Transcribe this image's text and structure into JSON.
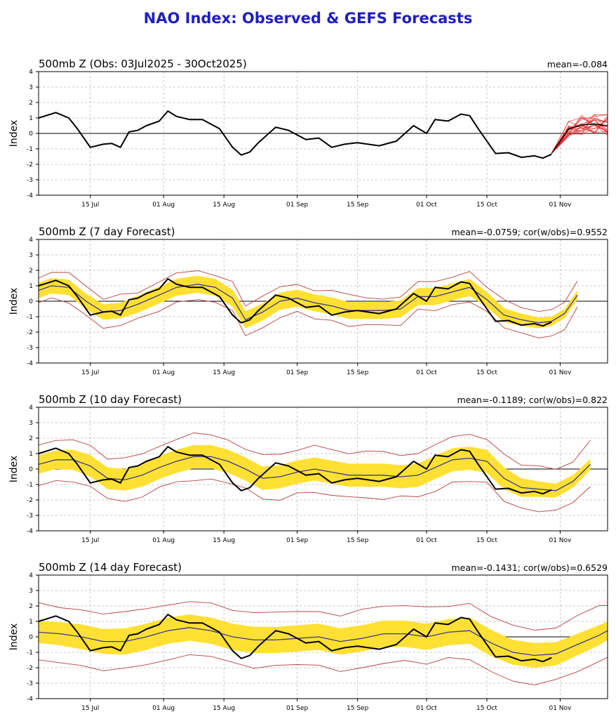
{
  "page": {
    "title": "NAO Index: Observed & GEFS Forecasts"
  },
  "colors": {
    "title": "#1f1fbf",
    "observed": "#000000",
    "ensemble": "#e21f1f",
    "spread": "#ffe033",
    "mean": "#3a3a8c",
    "bounds": "#b84040",
    "grid": "#b8b8b8"
  },
  "chart_data": [
    {
      "type": "line",
      "title": "500mb Z (Obs: 03Jul2025 - 30Oct2025)",
      "stat": "mean=-0.084",
      "ylabel": "Index",
      "ylim": [
        -4,
        4
      ],
      "yticks": [
        -4,
        -3,
        -2,
        -1,
        0,
        1,
        2,
        3,
        4
      ],
      "xlim": [
        "2025-07-03",
        "2025-11-12"
      ],
      "xticks": [
        {
          "date": "2025-07-15",
          "label": "15 Jul"
        },
        {
          "date": "2025-08-01",
          "label": "01 Aug"
        },
        {
          "date": "2025-08-15",
          "label": "15 Aug"
        },
        {
          "date": "2025-09-01",
          "label": "01 Sep"
        },
        {
          "date": "2025-09-15",
          "label": "15 Sep"
        },
        {
          "date": "2025-10-01",
          "label": "01 Oct"
        },
        {
          "date": "2025-10-15",
          "label": "15 Oct"
        },
        {
          "date": "2025-11-01",
          "label": "01 Nov"
        }
      ],
      "grid": true,
      "series": [
        {
          "role": "observed",
          "x": [
            "2025-07-03",
            "2025-07-07",
            "2025-07-10",
            "2025-07-12",
            "2025-07-15",
            "2025-07-18",
            "2025-07-20",
            "2025-07-22",
            "2025-07-24",
            "2025-07-26",
            "2025-07-28",
            "2025-07-31",
            "2025-08-02",
            "2025-08-04",
            "2025-08-07",
            "2025-08-10",
            "2025-08-14",
            "2025-08-17",
            "2025-08-19",
            "2025-08-21",
            "2025-08-23",
            "2025-08-27",
            "2025-08-30",
            "2025-09-03",
            "2025-09-06",
            "2025-09-09",
            "2025-09-12",
            "2025-09-15",
            "2025-09-20",
            "2025-09-24",
            "2025-09-28",
            "2025-10-01",
            "2025-10-03",
            "2025-10-06",
            "2025-10-09",
            "2025-10-11",
            "2025-10-13",
            "2025-10-17",
            "2025-10-20",
            "2025-10-23",
            "2025-10-26",
            "2025-10-28",
            "2025-10-30"
          ],
          "values": [
            1.0,
            1.35,
            1.0,
            0.3,
            -0.9,
            -0.7,
            -0.65,
            -0.9,
            0.1,
            0.2,
            0.5,
            0.8,
            1.45,
            1.1,
            0.9,
            0.9,
            0.3,
            -0.9,
            -1.4,
            -1.2,
            -0.6,
            0.4,
            0.2,
            -0.4,
            -0.3,
            -0.9,
            -0.7,
            -0.6,
            -0.8,
            -0.5,
            0.5,
            0.0,
            0.9,
            0.8,
            1.25,
            1.15,
            0.3,
            -1.3,
            -1.25,
            -1.55,
            -1.45,
            -1.6,
            -1.35
          ]
        },
        {
          "role": "ensemble",
          "members": 21,
          "x": [
            "2025-10-30",
            "2025-11-03",
            "2025-11-06",
            "2025-11-09",
            "2025-11-12"
          ],
          "values": [
            -1.3,
            0.3,
            0.55,
            0.6,
            0.5
          ],
          "spread": [
            0.1,
            0.55,
            0.65,
            0.7,
            0.75
          ]
        }
      ]
    },
    {
      "type": "line",
      "title": "500mb Z (7 day Forecast)",
      "stat": "mean=-0.0759; cor(w/obs)=0.9552",
      "ylabel": "Index",
      "ylim": [
        -4,
        4
      ],
      "yticks": [
        -4,
        -3,
        -2,
        -1,
        0,
        1,
        2,
        3,
        4
      ],
      "xlim": [
        "2025-07-03",
        "2025-11-12"
      ],
      "xticks": [
        {
          "date": "2025-07-15",
          "label": "15 Jul"
        },
        {
          "date": "2025-08-01",
          "label": "01 Aug"
        },
        {
          "date": "2025-08-15",
          "label": "15 Aug"
        },
        {
          "date": "2025-09-01",
          "label": "01 Sep"
        },
        {
          "date": "2025-09-15",
          "label": "15 Sep"
        },
        {
          "date": "2025-10-01",
          "label": "01 Oct"
        },
        {
          "date": "2025-10-15",
          "label": "15 Oct"
        },
        {
          "date": "2025-11-01",
          "label": "01 Nov"
        }
      ],
      "grid": true,
      "series": [
        {
          "role": "forecast",
          "x": [
            "2025-07-03",
            "2025-07-06",
            "2025-07-10",
            "2025-07-14",
            "2025-07-18",
            "2025-07-22",
            "2025-07-26",
            "2025-07-31",
            "2025-08-04",
            "2025-08-09",
            "2025-08-13",
            "2025-08-17",
            "2025-08-20",
            "2025-08-24",
            "2025-08-28",
            "2025-09-01",
            "2025-09-05",
            "2025-09-09",
            "2025-09-13",
            "2025-09-17",
            "2025-09-21",
            "2025-09-25",
            "2025-09-29",
            "2025-10-03",
            "2025-10-07",
            "2025-10-11",
            "2025-10-15",
            "2025-10-19",
            "2025-10-23",
            "2025-10-27",
            "2025-10-30",
            "2025-11-02",
            "2025-11-05"
          ],
          "mean": [
            0.7,
            1.0,
            0.9,
            0.0,
            -0.7,
            -0.6,
            -0.2,
            0.4,
            0.9,
            1.1,
            0.9,
            0.2,
            -1.2,
            -0.7,
            0.0,
            0.2,
            -0.1,
            -0.3,
            -0.6,
            -0.6,
            -0.6,
            -0.5,
            0.3,
            0.3,
            0.6,
            0.9,
            0.1,
            -0.9,
            -1.2,
            -1.4,
            -1.3,
            -0.8,
            0.4
          ],
          "spread": [
            0.5,
            0.5,
            0.5,
            0.5,
            0.5,
            0.5,
            0.55,
            0.55,
            0.55,
            0.55,
            0.55,
            0.55,
            0.55,
            0.55,
            0.55,
            0.55,
            0.55,
            0.55,
            0.55,
            0.55,
            0.55,
            0.55,
            0.55,
            0.55,
            0.55,
            0.55,
            0.5,
            0.45,
            0.4,
            0.35,
            0.3,
            0.3,
            0.3
          ],
          "range": 0.9
        },
        {
          "role": "observed",
          "x": [
            "2025-07-03",
            "2025-07-07",
            "2025-07-10",
            "2025-07-12",
            "2025-07-15",
            "2025-07-18",
            "2025-07-20",
            "2025-07-22",
            "2025-07-24",
            "2025-07-26",
            "2025-07-28",
            "2025-07-31",
            "2025-08-02",
            "2025-08-04",
            "2025-08-07",
            "2025-08-10",
            "2025-08-14",
            "2025-08-17",
            "2025-08-19",
            "2025-08-21",
            "2025-08-23",
            "2025-08-27",
            "2025-08-30",
            "2025-09-03",
            "2025-09-06",
            "2025-09-09",
            "2025-09-12",
            "2025-09-15",
            "2025-09-20",
            "2025-09-24",
            "2025-09-28",
            "2025-10-01",
            "2025-10-03",
            "2025-10-06",
            "2025-10-09",
            "2025-10-11",
            "2025-10-13",
            "2025-10-17",
            "2025-10-20",
            "2025-10-23",
            "2025-10-26",
            "2025-10-28",
            "2025-10-30"
          ],
          "values": [
            1.0,
            1.35,
            1.0,
            0.3,
            -0.9,
            -0.7,
            -0.65,
            -0.9,
            0.1,
            0.2,
            0.5,
            0.8,
            1.45,
            1.1,
            0.9,
            0.9,
            0.3,
            -0.9,
            -1.4,
            -1.2,
            -0.6,
            0.4,
            0.2,
            -0.4,
            -0.3,
            -0.9,
            -0.7,
            -0.6,
            -0.8,
            -0.5,
            0.5,
            0.0,
            0.9,
            0.8,
            1.25,
            1.15,
            0.3,
            -1.3,
            -1.25,
            -1.55,
            -1.45,
            -1.6,
            -1.35
          ]
        }
      ]
    },
    {
      "type": "line",
      "title": "500mb Z (10 day Forecast)",
      "stat": "mean=-0.1189; cor(w/obs)=0.822",
      "ylabel": "Index",
      "ylim": [
        -4,
        4
      ],
      "yticks": [
        -4,
        -3,
        -2,
        -1,
        0,
        1,
        2,
        3,
        4
      ],
      "xlim": [
        "2025-07-03",
        "2025-11-12"
      ],
      "xticks": [
        {
          "date": "2025-07-15",
          "label": "15 Jul"
        },
        {
          "date": "2025-08-01",
          "label": "01 Aug"
        },
        {
          "date": "2025-08-15",
          "label": "15 Aug"
        },
        {
          "date": "2025-09-01",
          "label": "01 Sep"
        },
        {
          "date": "2025-09-15",
          "label": "15 Sep"
        },
        {
          "date": "2025-10-01",
          "label": "01 Oct"
        },
        {
          "date": "2025-10-15",
          "label": "15 Oct"
        },
        {
          "date": "2025-11-01",
          "label": "01 Nov"
        }
      ],
      "grid": true,
      "series": [
        {
          "role": "forecast",
          "x": [
            "2025-07-03",
            "2025-07-07",
            "2025-07-11",
            "2025-07-15",
            "2025-07-19",
            "2025-07-23",
            "2025-07-27",
            "2025-07-31",
            "2025-08-04",
            "2025-08-08",
            "2025-08-12",
            "2025-08-16",
            "2025-08-20",
            "2025-08-24",
            "2025-08-28",
            "2025-09-01",
            "2025-09-05",
            "2025-09-09",
            "2025-09-13",
            "2025-09-17",
            "2025-09-21",
            "2025-09-25",
            "2025-09-29",
            "2025-10-03",
            "2025-10-07",
            "2025-10-11",
            "2025-10-15",
            "2025-10-19",
            "2025-10-23",
            "2025-10-27",
            "2025-10-31",
            "2025-11-04",
            "2025-11-08"
          ],
          "mean": [
            0.3,
            0.6,
            0.6,
            0.2,
            -0.6,
            -0.7,
            -0.4,
            0.1,
            0.5,
            0.8,
            0.8,
            0.5,
            0.0,
            -0.6,
            -0.5,
            -0.2,
            0.0,
            -0.2,
            -0.4,
            -0.4,
            -0.4,
            -0.5,
            -0.4,
            0.1,
            0.6,
            0.7,
            0.5,
            -0.6,
            -1.2,
            -1.3,
            -1.4,
            -0.8,
            0.3
          ],
          "spread": [
            0.6,
            0.6,
            0.65,
            0.7,
            0.7,
            0.7,
            0.75,
            0.75,
            0.75,
            0.75,
            0.75,
            0.75,
            0.75,
            0.75,
            0.75,
            0.75,
            0.75,
            0.75,
            0.75,
            0.75,
            0.75,
            0.75,
            0.75,
            0.75,
            0.75,
            0.75,
            0.75,
            0.7,
            0.6,
            0.5,
            0.45,
            0.4,
            0.35
          ],
          "range": 1.4
        },
        {
          "role": "observed",
          "x": [
            "2025-07-03",
            "2025-07-07",
            "2025-07-10",
            "2025-07-12",
            "2025-07-15",
            "2025-07-18",
            "2025-07-20",
            "2025-07-22",
            "2025-07-24",
            "2025-07-26",
            "2025-07-28",
            "2025-07-31",
            "2025-08-02",
            "2025-08-04",
            "2025-08-07",
            "2025-08-10",
            "2025-08-14",
            "2025-08-17",
            "2025-08-19",
            "2025-08-21",
            "2025-08-23",
            "2025-08-27",
            "2025-08-30",
            "2025-09-03",
            "2025-09-06",
            "2025-09-09",
            "2025-09-12",
            "2025-09-15",
            "2025-09-20",
            "2025-09-24",
            "2025-09-28",
            "2025-10-01",
            "2025-10-03",
            "2025-10-06",
            "2025-10-09",
            "2025-10-11",
            "2025-10-13",
            "2025-10-17",
            "2025-10-20",
            "2025-10-23",
            "2025-10-26",
            "2025-10-28",
            "2025-10-30"
          ],
          "values": [
            1.0,
            1.35,
            1.0,
            0.3,
            -0.9,
            -0.7,
            -0.65,
            -0.9,
            0.1,
            0.2,
            0.5,
            0.8,
            1.45,
            1.1,
            0.9,
            0.9,
            0.3,
            -0.9,
            -1.4,
            -1.2,
            -0.6,
            0.4,
            0.2,
            -0.4,
            -0.3,
            -0.9,
            -0.7,
            -0.6,
            -0.8,
            -0.5,
            0.5,
            0.0,
            0.9,
            0.8,
            1.25,
            1.15,
            0.3,
            -1.3,
            -1.25,
            -1.55,
            -1.45,
            -1.6,
            -1.35
          ]
        }
      ]
    },
    {
      "type": "line",
      "title": "500mb Z (14 day Forecast)",
      "stat": "mean=-0.1431; cor(w/obs)=0.6529",
      "ylabel": "Index",
      "ylim": [
        -4,
        4
      ],
      "yticks": [
        -4,
        -3,
        -2,
        -1,
        0,
        1,
        2,
        3,
        4
      ],
      "xlim": [
        "2025-07-03",
        "2025-11-12"
      ],
      "xticks": [
        {
          "date": "2025-07-15",
          "label": "15 Jul"
        },
        {
          "date": "2025-08-01",
          "label": "01 Aug"
        },
        {
          "date": "2025-08-15",
          "label": "15 Aug"
        },
        {
          "date": "2025-09-01",
          "label": "01 Sep"
        },
        {
          "date": "2025-09-15",
          "label": "15 Sep"
        },
        {
          "date": "2025-10-01",
          "label": "01 Oct"
        },
        {
          "date": "2025-10-15",
          "label": "15 Oct"
        },
        {
          "date": "2025-11-01",
          "label": "01 Nov"
        }
      ],
      "grid": true,
      "series": [
        {
          "role": "forecast",
          "x": [
            "2025-07-03",
            "2025-07-08",
            "2025-07-13",
            "2025-07-18",
            "2025-07-23",
            "2025-07-28",
            "2025-08-02",
            "2025-08-07",
            "2025-08-12",
            "2025-08-17",
            "2025-08-22",
            "2025-08-27",
            "2025-09-01",
            "2025-09-06",
            "2025-09-11",
            "2025-09-16",
            "2025-09-21",
            "2025-09-26",
            "2025-10-01",
            "2025-10-06",
            "2025-10-11",
            "2025-10-16",
            "2025-10-21",
            "2025-10-26",
            "2025-10-31",
            "2025-11-05",
            "2025-11-10",
            "2025-11-12"
          ],
          "mean": [
            0.3,
            0.2,
            0.0,
            -0.3,
            -0.3,
            0.0,
            0.4,
            0.6,
            0.4,
            0.0,
            -0.2,
            -0.2,
            -0.1,
            0.0,
            -0.3,
            -0.1,
            0.2,
            0.2,
            0.0,
            0.3,
            0.4,
            -0.4,
            -1.0,
            -1.2,
            -1.1,
            -0.5,
            0.1,
            0.4
          ],
          "spread": [
            0.7,
            0.75,
            0.8,
            0.8,
            0.85,
            0.85,
            0.85,
            0.85,
            0.85,
            0.85,
            0.85,
            0.85,
            0.85,
            0.85,
            0.85,
            0.85,
            0.85,
            0.85,
            0.85,
            0.85,
            0.85,
            0.85,
            0.8,
            0.8,
            0.75,
            0.7,
            0.65,
            0.6
          ],
          "range": 1.8
        },
        {
          "role": "observed",
          "x": [
            "2025-07-03",
            "2025-07-07",
            "2025-07-10",
            "2025-07-12",
            "2025-07-15",
            "2025-07-18",
            "2025-07-20",
            "2025-07-22",
            "2025-07-24",
            "2025-07-26",
            "2025-07-28",
            "2025-07-31",
            "2025-08-02",
            "2025-08-04",
            "2025-08-07",
            "2025-08-10",
            "2025-08-14",
            "2025-08-17",
            "2025-08-19",
            "2025-08-21",
            "2025-08-23",
            "2025-08-27",
            "2025-08-30",
            "2025-09-03",
            "2025-09-06",
            "2025-09-09",
            "2025-09-12",
            "2025-09-15",
            "2025-09-20",
            "2025-09-24",
            "2025-09-28",
            "2025-10-01",
            "2025-10-03",
            "2025-10-06",
            "2025-10-09",
            "2025-10-11",
            "2025-10-13",
            "2025-10-17",
            "2025-10-20",
            "2025-10-23",
            "2025-10-26",
            "2025-10-28",
            "2025-10-30"
          ],
          "values": [
            1.0,
            1.35,
            1.0,
            0.3,
            -0.9,
            -0.7,
            -0.65,
            -0.9,
            0.1,
            0.2,
            0.5,
            0.8,
            1.45,
            1.1,
            0.9,
            0.9,
            0.3,
            -0.9,
            -1.4,
            -1.2,
            -0.6,
            0.4,
            0.2,
            -0.4,
            -0.3,
            -0.9,
            -0.7,
            -0.6,
            -0.8,
            -0.5,
            0.5,
            0.0,
            0.9,
            0.8,
            1.25,
            1.15,
            0.3,
            -1.3,
            -1.25,
            -1.55,
            -1.45,
            -1.6,
            -1.35
          ]
        }
      ]
    }
  ]
}
